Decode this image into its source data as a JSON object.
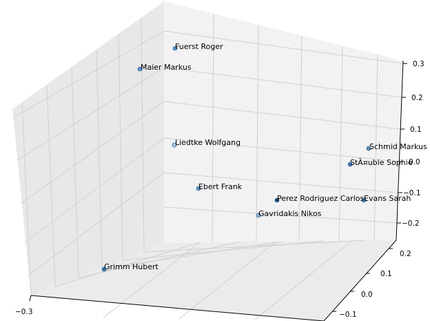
{
  "chart_data": {
    "type": "scatter",
    "title": "",
    "xlabel": "",
    "ylabel": "",
    "zlabel": "",
    "grid": true,
    "z_ticks": [
      "−0.2",
      "−0.1",
      "0.0",
      "0.1",
      "0.2",
      "0.3"
    ],
    "y_ticks": [
      "−0.1",
      "0.0",
      "0.1",
      "0.2"
    ],
    "x_ticks": [
      "−0.3"
    ],
    "points": [
      {
        "label": "Fuerst Roger",
        "color": "#5b9bd5"
      },
      {
        "label": "Maier Markus",
        "color": "#5b9bd5"
      },
      {
        "label": "Liedtke Wolfgang",
        "color": "#9dc3e6"
      },
      {
        "label": "Schmid Markus",
        "color": "#4f8fc8"
      },
      {
        "label": "StÃ¤uble Sophie",
        "color": "#3f7fbf"
      },
      {
        "label": "Ebert Frank",
        "color": "#5b9bd5"
      },
      {
        "label": "Perez Rodriguez Carlos",
        "color": "#1f4e79"
      },
      {
        "label": "Evans Sarah",
        "color": "#4f8fc8"
      },
      {
        "label": "Gavridakis Nikos",
        "color": "#8db8e0"
      },
      {
        "label": "Grimm Hubert",
        "color": "#2e75b6"
      }
    ]
  }
}
